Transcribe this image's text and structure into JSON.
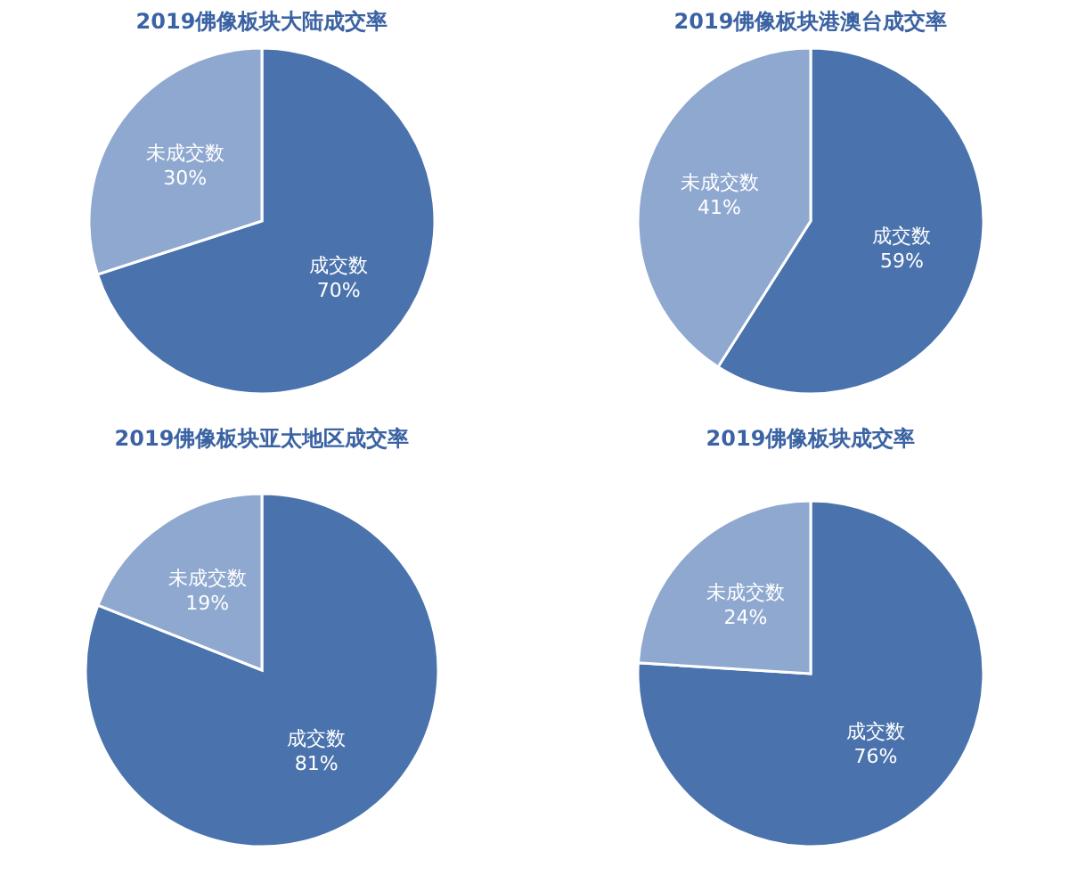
{
  "chart_data": [
    {
      "type": "pie",
      "title": "2019佛像板块大陆成交率",
      "categories": [
        "成交数",
        "未成交数"
      ],
      "values": [
        70,
        30
      ],
      "colors": [
        "#4a72ad",
        "#8fa8d0"
      ],
      "value_labels": [
        "70%",
        "30%"
      ]
    },
    {
      "type": "pie",
      "title": "2019佛像板块港澳台成交率",
      "categories": [
        "成交数",
        "未成交数"
      ],
      "values": [
        59,
        41
      ],
      "colors": [
        "#4a72ad",
        "#8fa8d0"
      ],
      "value_labels": [
        "59%",
        "41%"
      ]
    },
    {
      "type": "pie",
      "title": "2019佛像板块亚太地区成交率",
      "categories": [
        "成交数",
        "未成交数"
      ],
      "values": [
        81,
        19
      ],
      "colors": [
        "#4a72ad",
        "#8fa8d0"
      ],
      "value_labels": [
        "81%",
        "19%"
      ]
    },
    {
      "type": "pie",
      "title": "2019佛像板块成交率",
      "categories": [
        "成交数",
        "未成交数"
      ],
      "values": [
        76,
        24
      ],
      "colors": [
        "#4a72ad",
        "#8fa8d0"
      ],
      "value_labels": [
        "76%",
        "24%"
      ]
    }
  ]
}
